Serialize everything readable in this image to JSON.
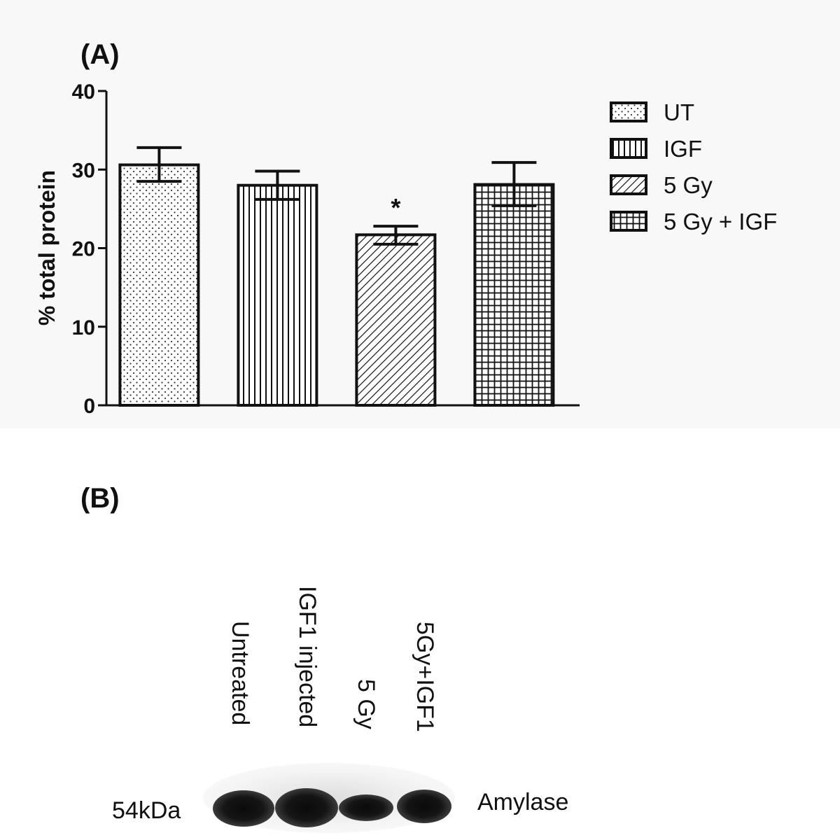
{
  "panel_a": {
    "label": "(A)"
  },
  "panel_b": {
    "label": "(B)",
    "lanes": [
      "Untreated",
      "IGF1 injected",
      "5 Gy",
      "5Gy+IGF1"
    ],
    "marker": "54kDa",
    "protein": "Amylase"
  },
  "chart_data": {
    "type": "bar",
    "categories": [
      "UT",
      "IGF",
      "5 Gy",
      "5 Gy + IGF"
    ],
    "values": [
      30.6,
      28.0,
      21.7,
      28.1
    ],
    "error_low": [
      28.5,
      26.2,
      20.5,
      25.4
    ],
    "error_high": [
      32.8,
      29.8,
      22.8,
      30.9
    ],
    "patterns": [
      "dots",
      "vertical-lines",
      "diagonal-lines",
      "grid"
    ],
    "annotations": [
      {
        "category": "5 Gy",
        "text": "*"
      }
    ],
    "legend": {
      "entries": [
        "UT",
        "IGF",
        "5 Gy",
        "5 Gy + IGF"
      ],
      "position": "right"
    },
    "ylabel": "% total protein",
    "xlabel": "",
    "ylim": [
      0,
      40
    ],
    "yticks": [
      0,
      10,
      20,
      30,
      40
    ],
    "grid": false
  }
}
